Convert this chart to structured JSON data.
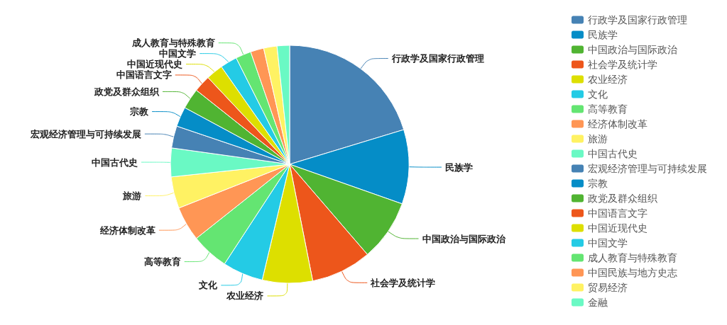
{
  "chart_data": {
    "type": "pie",
    "categories": [
      "行政学及国家行政管理",
      "民族学",
      "中国政治与国际政治",
      "社会学及统计学",
      "农业经济",
      "文化",
      "高等教育",
      "经济体制改革",
      "旅游",
      "中国古代史",
      "宏观经济管理与可持续发展",
      "宗教",
      "政党及群众组织",
      "中国语言文字",
      "中国近现代史",
      "中国文学",
      "成人教育与特殊教育",
      "中国民族与地方史志",
      "贸易经济",
      "金融"
    ],
    "values": [
      20.3,
      10.1,
      8.3,
      8.2,
      6.8,
      5.5,
      5.1,
      4.7,
      4.3,
      3.9,
      3.0,
      2.7,
      2.8,
      2.3,
      2.3,
      2.3,
      2.1,
      1.8,
      1.8,
      1.7
    ],
    "colors": [
      "#4682b4",
      "#058dc7",
      "#50b432",
      "#ed561b",
      "#dddf00",
      "#24cbe5",
      "#64e572",
      "#ff9655",
      "#fff263",
      "#6af9c4",
      "#4682b4",
      "#058dc7",
      "#50b432",
      "#ed561b",
      "#dddf00",
      "#24cbe5",
      "#64e572",
      "#ff9655",
      "#fff263",
      "#6af9c4"
    ],
    "legend": "right"
  }
}
